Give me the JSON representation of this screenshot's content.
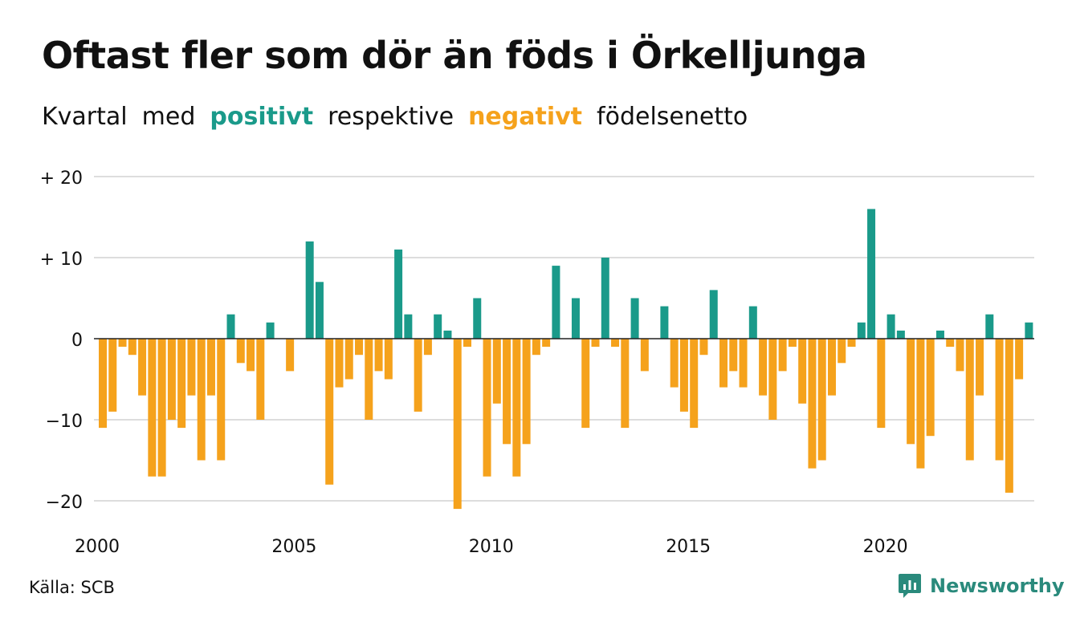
{
  "title": "Oftast fler som dör än föds i Örkelljunga",
  "subtitle": {
    "part1": "Kvartal",
    "part2": "med",
    "positive": "positivt",
    "part3": "respektive",
    "negative": "negativt",
    "part4": "födelsenetto"
  },
  "source": "Källa: SCB",
  "brand": "Newsworthy",
  "colors": {
    "positive": "#1a9a8a",
    "negative": "#f5a21c",
    "grid": "#dddddd",
    "zero_line": "#222222",
    "brand": "#2a8a7c"
  },
  "icons": {
    "logo": "newsworthy-logo-icon"
  },
  "chart_data": {
    "type": "bar",
    "title": "Oftast fler som dör än föds i Örkelljunga",
    "subtitle": "Kvartal med positivt respektive negativt födelsenetto",
    "xlabel": "",
    "ylabel": "",
    "ylim": [
      -22,
      20
    ],
    "yticks": [
      20,
      10,
      0,
      -10,
      -20
    ],
    "ytick_labels": [
      "+ 20",
      "+ 10",
      "0",
      "−10",
      "−20"
    ],
    "xticks": [
      2000,
      2005,
      2010,
      2015,
      2020
    ],
    "xtick_labels": [
      "2000",
      "2005",
      "2010",
      "2015",
      "2020"
    ],
    "grid": true,
    "x_start_year": 2000,
    "periods_per_year": 4,
    "values": [
      -11,
      -9,
      -1,
      -2,
      -7,
      -17,
      -17,
      -10,
      -11,
      -7,
      -15,
      -7,
      -15,
      3,
      -3,
      -4,
      -10,
      2,
      0,
      -4,
      0,
      12,
      7,
      -18,
      -6,
      -5,
      -2,
      -10,
      -4,
      -5,
      11,
      3,
      -9,
      -2,
      3,
      1,
      -21,
      -1,
      5,
      -17,
      -8,
      -13,
      -17,
      -13,
      -2,
      -1,
      9,
      0,
      5,
      -11,
      -1,
      10,
      -1,
      -11,
      5,
      -4,
      0,
      4,
      -6,
      -9,
      -11,
      -2,
      6,
      -6,
      -4,
      -6,
      4,
      -7,
      -10,
      -4,
      -1,
      -8,
      -16,
      -15,
      -7,
      -3,
      -1,
      2,
      16,
      -11,
      3,
      1,
      -13,
      -16,
      -12,
      1,
      -1,
      -4,
      -15,
      -7,
      3,
      -15,
      -19,
      -5,
      2
    ]
  }
}
